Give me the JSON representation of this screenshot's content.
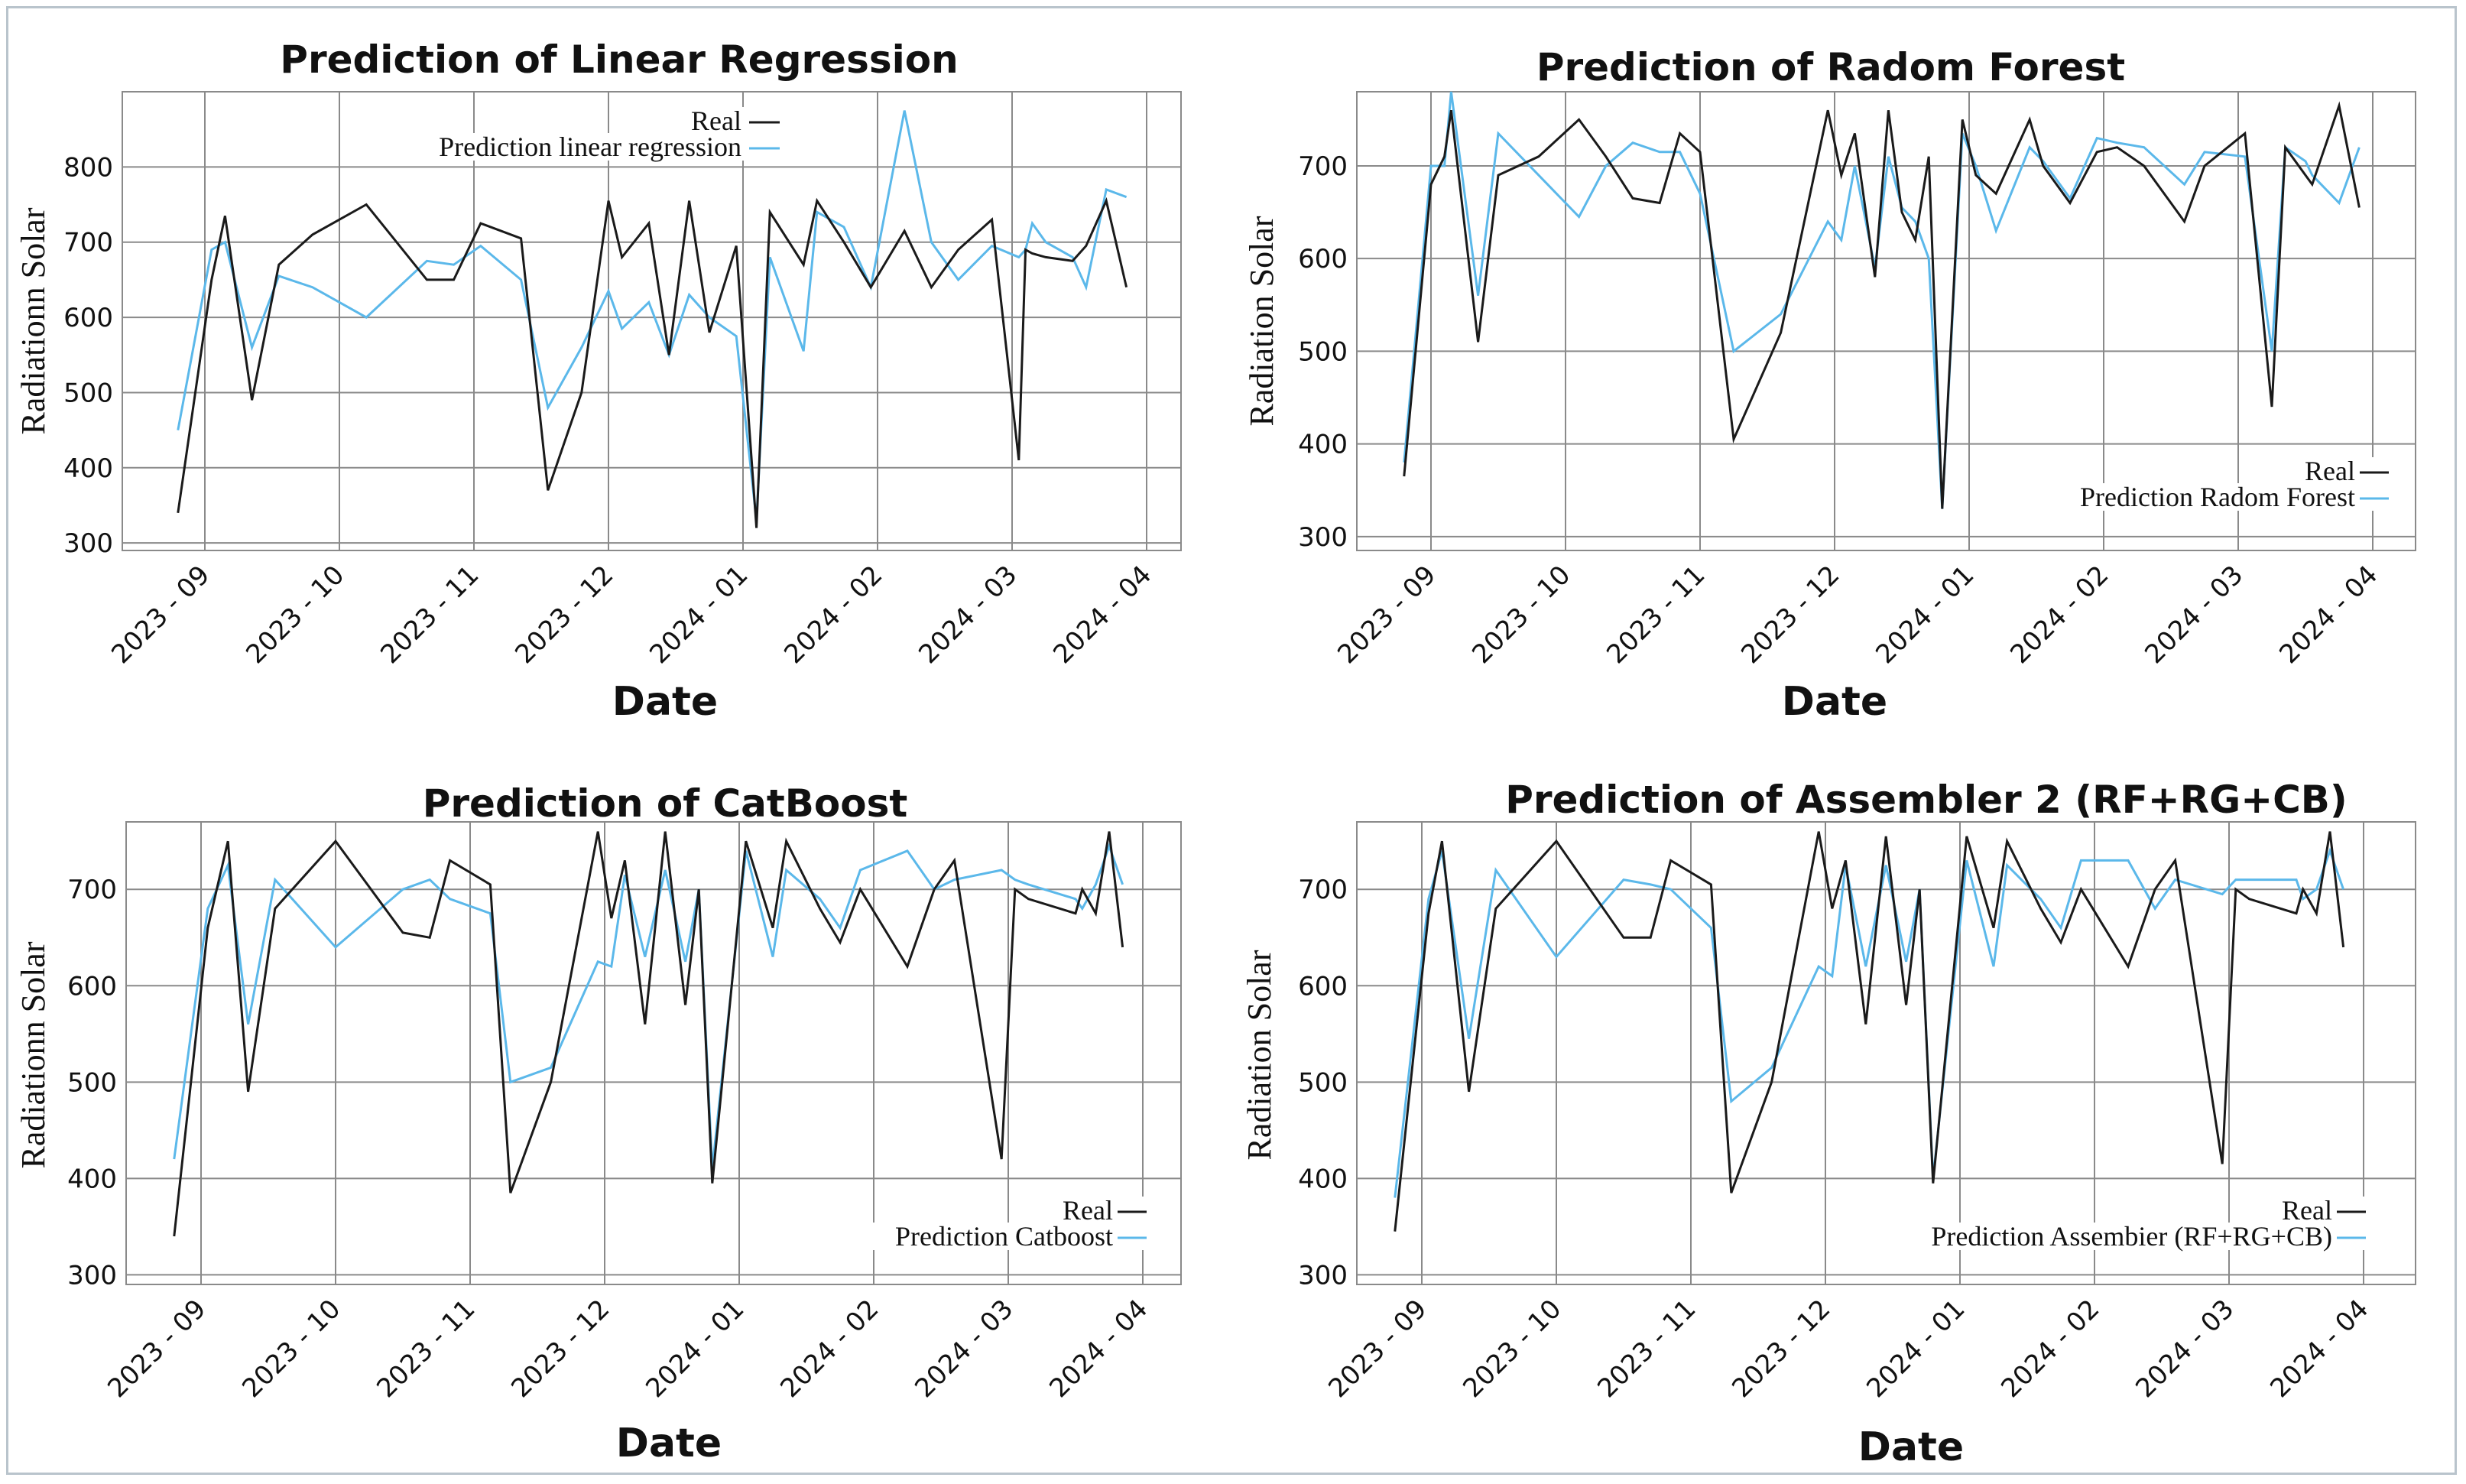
{
  "colors": {
    "real": "#1a1a1a",
    "prediction": "#5bb8ea",
    "grid": "#8a8a8a"
  },
  "chart_data": [
    {
      "type": "line",
      "title": "Prediction of Linear Regression",
      "xlabel": "Date",
      "ylabel": "Radiationn Solar",
      "ylim": [
        290,
        900
      ],
      "yticks": [
        300,
        400,
        500,
        600,
        700,
        800
      ],
      "xlim": [
        0,
        7.5
      ],
      "xticks": [
        "2023 - 09",
        "2023 - 10",
        "2023 - 11",
        "2023 - 12",
        "2024 - 01",
        "2024 - 02",
        "2024 - 03",
        "2024 - 04"
      ],
      "legend": "top-center",
      "series": [
        {
          "name": "Real",
          "x": [
            -0.2,
            0.05,
            0.15,
            0.35,
            0.55,
            0.8,
            1.2,
            1.65,
            1.85,
            2.05,
            2.35,
            2.55,
            2.8,
            3,
            3.1,
            3.3,
            3.45,
            3.6,
            3.75,
            3.95,
            4.1,
            4.2,
            4.45,
            4.55,
            4.75,
            4.95,
            5.2,
            5.4,
            5.6,
            5.85,
            6.05,
            6.1,
            6.15,
            6.25,
            6.45,
            6.55,
            6.7,
            6.85
          ],
          "y": [
            340,
            650,
            735,
            490,
            670,
            710,
            750,
            650,
            650,
            725,
            705,
            370,
            500,
            755,
            680,
            725,
            550,
            755,
            580,
            695,
            320,
            740,
            670,
            755,
            700,
            640,
            715,
            640,
            690,
            730,
            410,
            690,
            685,
            680,
            675,
            695,
            755,
            640
          ]
        },
        {
          "name": "Prediction linear regression",
          "x": [
            -0.2,
            0.05,
            0.15,
            0.35,
            0.55,
            0.8,
            1.2,
            1.65,
            1.85,
            2.05,
            2.35,
            2.55,
            2.8,
            3,
            3.1,
            3.3,
            3.45,
            3.6,
            3.75,
            3.95,
            4.1,
            4.2,
            4.45,
            4.55,
            4.75,
            4.95,
            5.2,
            5.4,
            5.6,
            5.85,
            6.05,
            6.1,
            6.15,
            6.25,
            6.45,
            6.55,
            6.7,
            6.85
          ],
          "y": [
            450,
            690,
            700,
            560,
            655,
            640,
            600,
            675,
            670,
            695,
            650,
            480,
            560,
            635,
            585,
            620,
            550,
            630,
            600,
            575,
            330,
            680,
            555,
            740,
            720,
            640,
            875,
            700,
            650,
            695,
            680,
            690,
            725,
            700,
            680,
            640,
            770,
            760
          ]
        }
      ]
    },
    {
      "type": "line",
      "title": "Prediction of  Radom Forest",
      "xlabel": "Date",
      "ylabel": "Radiation Solar",
      "ylim": [
        285,
        780
      ],
      "yticks": [
        300,
        400,
        500,
        600,
        700
      ],
      "xlim": [
        0,
        7.5
      ],
      "xticks": [
        "2023 - 09",
        "2023 - 10",
        "2023 - 11",
        "2023 - 12",
        "2024 - 01",
        "2024 - 02",
        "2024 - 03",
        "2024 - 04"
      ],
      "legend": "bottom-right",
      "series": [
        {
          "name": "Real",
          "x": [
            -0.2,
            0,
            0.1,
            0.15,
            0.35,
            0.5,
            0.8,
            1.1,
            1.3,
            1.5,
            1.7,
            1.85,
            2,
            2.25,
            2.6,
            2.95,
            3.05,
            3.15,
            3.3,
            3.4,
            3.5,
            3.6,
            3.7,
            3.8,
            3.95,
            4.05,
            4.2,
            4.45,
            4.55,
            4.75,
            4.95,
            5.1,
            5.3,
            5.6,
            5.75,
            6.05,
            6.25,
            6.35,
            6.5,
            6.55,
            6.75,
            6.9
          ],
          "y": [
            365,
            680,
            710,
            760,
            510,
            690,
            710,
            750,
            710,
            665,
            660,
            735,
            715,
            405,
            520,
            760,
            690,
            735,
            580,
            760,
            650,
            620,
            710,
            330,
            750,
            690,
            670,
            750,
            700,
            660,
            715,
            720,
            700,
            640,
            700,
            735,
            440,
            720,
            690,
            680,
            765,
            655
          ]
        },
        {
          "name": "Prediction Radom Forest",
          "x": [
            -0.2,
            0,
            0.1,
            0.15,
            0.35,
            0.5,
            0.8,
            1.1,
            1.3,
            1.5,
            1.7,
            1.85,
            2,
            2.25,
            2.6,
            2.95,
            3.05,
            3.15,
            3.3,
            3.4,
            3.5,
            3.6,
            3.7,
            3.8,
            3.95,
            4.05,
            4.2,
            4.45,
            4.55,
            4.75,
            4.95,
            5.1,
            5.3,
            5.6,
            5.75,
            6.05,
            6.25,
            6.35,
            6.5,
            6.55,
            6.75,
            6.9
          ],
          "y": [
            380,
            700,
            700,
            780,
            560,
            735,
            690,
            645,
            700,
            725,
            715,
            715,
            670,
            500,
            540,
            640,
            620,
            700,
            590,
            710,
            655,
            640,
            600,
            330,
            735,
            700,
            630,
            720,
            705,
            665,
            730,
            725,
            720,
            680,
            715,
            710,
            500,
            720,
            705,
            690,
            660,
            720
          ]
        }
      ]
    },
    {
      "type": "line",
      "title": "Prediction of CatBoost",
      "xlabel": "Date",
      "ylabel": "Radiationn Solar",
      "ylim": [
        290,
        770
      ],
      "yticks": [
        300,
        400,
        500,
        600,
        700
      ],
      "xlim": [
        0,
        7.5
      ],
      "xticks": [
        "2023 - 09",
        "2023 - 10",
        "2023 - 11",
        "2023 - 12",
        "2024 - 01",
        "2024 - 02",
        "2024 - 03",
        "2024 - 04"
      ],
      "legend": "bottom-right",
      "series": [
        {
          "name": "Real",
          "x": [
            -0.2,
            0.05,
            0.2,
            0.35,
            0.55,
            1,
            1.5,
            1.7,
            1.85,
            2.15,
            2.3,
            2.6,
            2.95,
            3.05,
            3.15,
            3.3,
            3.45,
            3.6,
            3.7,
            3.8,
            4.05,
            4.25,
            4.35,
            4.6,
            4.75,
            4.9,
            5.25,
            5.45,
            5.6,
            5.95,
            6.05,
            6.15,
            6.5,
            6.55,
            6.65,
            6.75,
            6.85
          ],
          "y": [
            340,
            660,
            750,
            490,
            680,
            750,
            655,
            650,
            730,
            705,
            385,
            500,
            760,
            670,
            730,
            560,
            760,
            580,
            700,
            395,
            750,
            660,
            750,
            680,
            645,
            700,
            620,
            700,
            730,
            420,
            700,
            690,
            675,
            700,
            675,
            760,
            640
          ]
        },
        {
          "name": "Prediction Catboost",
          "x": [
            -0.2,
            0.05,
            0.2,
            0.35,
            0.55,
            1,
            1.5,
            1.7,
            1.85,
            2.15,
            2.3,
            2.6,
            2.95,
            3.05,
            3.15,
            3.3,
            3.45,
            3.6,
            3.7,
            3.8,
            4.05,
            4.25,
            4.35,
            4.6,
            4.75,
            4.9,
            5.25,
            5.45,
            5.6,
            5.95,
            6.05,
            6.15,
            6.5,
            6.55,
            6.65,
            6.75,
            6.85
          ],
          "y": [
            420,
            680,
            725,
            560,
            710,
            640,
            700,
            710,
            690,
            675,
            500,
            515,
            625,
            620,
            715,
            630,
            720,
            625,
            700,
            410,
            740,
            630,
            720,
            690,
            660,
            720,
            740,
            700,
            710,
            720,
            710,
            705,
            690,
            680,
            705,
            745,
            705
          ]
        }
      ]
    },
    {
      "type": "line",
      "title": "Prediction of Assembler 2 (RF+RG+CB)",
      "xlabel": "Date",
      "ylabel": "Radiation Solar",
      "ylim": [
        290,
        770
      ],
      "yticks": [
        300,
        400,
        500,
        600,
        700
      ],
      "xlim": [
        0,
        7.5
      ],
      "xticks": [
        "2023 - 09",
        "2023 - 10",
        "2023 - 11",
        "2023 - 12",
        "2024 - 01",
        "2024 - 02",
        "2024 - 03",
        "2024 - 04"
      ],
      "legend": "bottom-right",
      "series": [
        {
          "name": "Real",
          "x": [
            -0.2,
            0.05,
            0.15,
            0.35,
            0.55,
            1,
            1.5,
            1.7,
            1.85,
            2.15,
            2.3,
            2.6,
            2.95,
            3.05,
            3.15,
            3.3,
            3.45,
            3.6,
            3.7,
            3.8,
            4.05,
            4.25,
            4.35,
            4.6,
            4.75,
            4.9,
            5.25,
            5.45,
            5.6,
            5.95,
            6.05,
            6.15,
            6.5,
            6.55,
            6.65,
            6.75,
            6.85
          ],
          "y": [
            345,
            675,
            750,
            490,
            680,
            750,
            650,
            650,
            730,
            705,
            385,
            500,
            760,
            680,
            730,
            560,
            755,
            580,
            700,
            395,
            755,
            660,
            750,
            680,
            645,
            700,
            620,
            700,
            730,
            415,
            700,
            690,
            675,
            700,
            675,
            760,
            640
          ]
        },
        {
          "name": "Prediction Assembier (RF+RG+CB)",
          "x": [
            -0.2,
            0.05,
            0.15,
            0.35,
            0.55,
            1,
            1.5,
            1.7,
            1.85,
            2.15,
            2.3,
            2.6,
            2.95,
            3.05,
            3.15,
            3.3,
            3.45,
            3.6,
            3.7,
            3.8,
            4.05,
            4.25,
            4.35,
            4.6,
            4.75,
            4.9,
            5.25,
            5.45,
            5.6,
            5.95,
            6.05,
            6.15,
            6.5,
            6.55,
            6.65,
            6.75,
            6.85
          ],
          "y": [
            380,
            690,
            740,
            545,
            720,
            630,
            710,
            705,
            700,
            660,
            480,
            515,
            620,
            610,
            725,
            620,
            725,
            625,
            700,
            400,
            730,
            620,
            725,
            690,
            660,
            730,
            730,
            680,
            710,
            695,
            710,
            710,
            710,
            690,
            700,
            740,
            700
          ]
        }
      ]
    }
  ]
}
